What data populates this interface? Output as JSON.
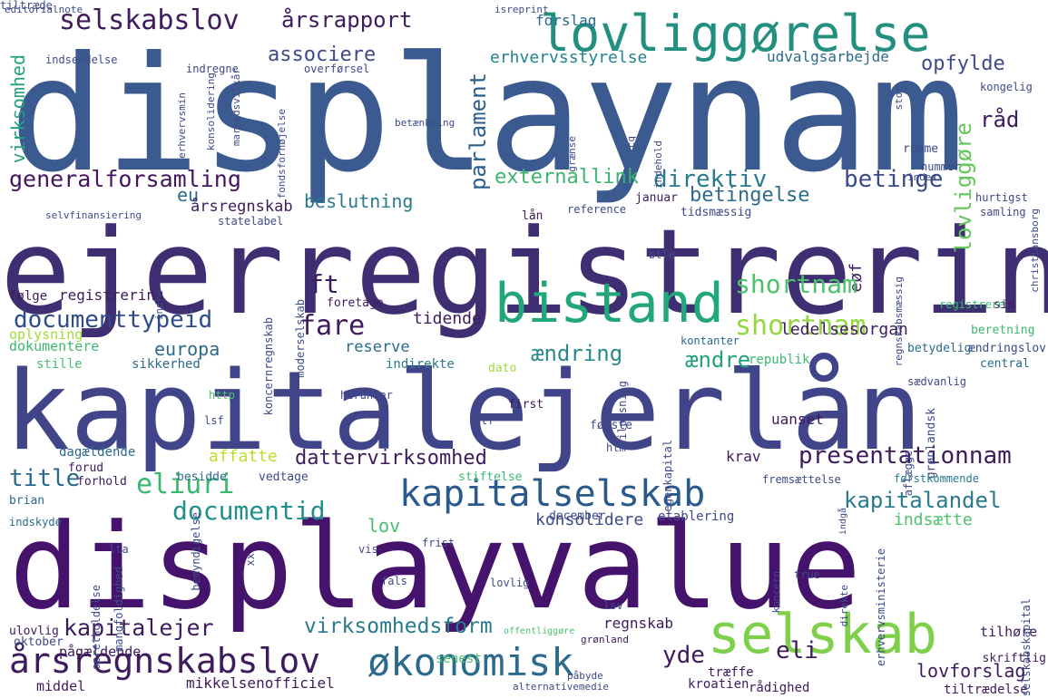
{
  "cloud": {
    "words": [
      {
        "text": "displaynam",
        "color": "#3b5a8f"
      },
      {
        "text": "ejerregistrering",
        "color": "#3f2f72"
      },
      {
        "text": "kapitalejerlån",
        "color": "#404589"
      },
      {
        "text": "displayvalue",
        "color": "#45136b"
      },
      {
        "text": "lovliggørelse",
        "color": "#23907f"
      },
      {
        "text": "bistand",
        "color": "#22a77a"
      },
      {
        "text": "selskab",
        "color": "#7ecf4a"
      },
      {
        "text": "selskabslov",
        "color": "#3e1b5c"
      },
      {
        "text": "årsrapport",
        "color": "#3e1b5c"
      },
      {
        "text": "associere",
        "color": "#3e4a89"
      },
      {
        "text": "erhvervsstyrelse",
        "color": "#21838e"
      },
      {
        "text": "udvalgsarbejde",
        "color": "#2a6a8d"
      },
      {
        "text": "opfylde",
        "color": "#3e4a89"
      },
      {
        "text": "virksomhed",
        "color": "#24a07e"
      },
      {
        "text": "parlament",
        "color": "#2c5e8e"
      },
      {
        "text": "forslag",
        "color": "#2a6a8d"
      },
      {
        "text": "generalforsamling",
        "color": "#46155f"
      },
      {
        "text": "externallink",
        "color": "#3cb46f"
      },
      {
        "text": "direktiv",
        "color": "#287a8e"
      },
      {
        "text": "betinge",
        "color": "#3a4b89"
      },
      {
        "text": "råd",
        "color": "#3e1b5c"
      },
      {
        "text": "eu",
        "color": "#2a6a8d"
      },
      {
        "text": "betingelse",
        "color": "#2f6b8e"
      },
      {
        "text": "lovliggøre",
        "color": "#63c759"
      },
      {
        "text": "årsregnskab",
        "color": "#3e1b5c"
      },
      {
        "text": "beslutning",
        "color": "#2a7a8e"
      },
      {
        "text": "documenttypeid",
        "color": "#2f4c8a"
      },
      {
        "text": "fare",
        "color": "#3e1b5c"
      },
      {
        "text": "shortnam",
        "color": "#93d741"
      },
      {
        "text": "ft",
        "color": "#3e1b5c"
      },
      {
        "text": "europa",
        "color": "#2d6a8d"
      },
      {
        "text": "ledelsesorgan",
        "color": "#3e1b5c"
      },
      {
        "text": "ændring",
        "color": "#2a8a8b"
      },
      {
        "text": "ændre",
        "color": "#24a27d"
      },
      {
        "text": "registrering",
        "color": "#3e1b5c"
      },
      {
        "text": "tidende",
        "color": "#3e1b5c"
      },
      {
        "text": "reserve",
        "color": "#2a6a8d"
      },
      {
        "text": "indirekte",
        "color": "#2a7a8e"
      },
      {
        "text": "eøf",
        "color": "#3e1b5c"
      },
      {
        "text": "presentationnam",
        "color": "#3e1b5c"
      },
      {
        "text": "dattervirksomhed",
        "color": "#3e1b5c"
      },
      {
        "text": "affatte",
        "color": "#b8de29"
      },
      {
        "text": "title",
        "color": "#2a6a8d"
      },
      {
        "text": "eliuri",
        "color": "#3ab96e"
      },
      {
        "text": "kapitalselskab",
        "color": "#2a5a8d"
      },
      {
        "text": "documentid",
        "color": "#21908c"
      },
      {
        "text": "kapitalandel",
        "color": "#2a7a8e"
      },
      {
        "text": "lov",
        "color": "#46c06f"
      },
      {
        "text": "konsolidere",
        "color": "#3e4a89"
      },
      {
        "text": "indsætte",
        "color": "#4cc26c"
      },
      {
        "text": "kapitalejer",
        "color": "#3e1b5c"
      },
      {
        "text": "virksomhedsform",
        "color": "#2a7a8e"
      },
      {
        "text": "årsregnskabslov",
        "color": "#3e1b5c"
      },
      {
        "text": "økonomisk",
        "color": "#2a6a8d"
      },
      {
        "text": "yde",
        "color": "#3e1b5c"
      },
      {
        "text": "eli",
        "color": "#3e1b5c"
      },
      {
        "text": "lovforslag",
        "color": "#3e1b5c"
      },
      {
        "text": "mikkelsenofficiel",
        "color": "#3e1b5c"
      },
      {
        "text": "regnskab",
        "color": "#3e1b5c"
      },
      {
        "text": "shortnam",
        "color": "#4cc26c"
      },
      {
        "text": "oplysning",
        "color": "#a2da37"
      },
      {
        "text": "dokumentere",
        "color": "#3ab96e"
      },
      {
        "text": "stille",
        "color": "#46c06f"
      },
      {
        "text": "sikkerhed",
        "color": "#2a6a8d"
      },
      {
        "text": "følge",
        "color": "#3e1b5c"
      },
      {
        "text": "krav",
        "color": "#3e1b5c"
      },
      {
        "text": "uanset",
        "color": "#3e1b5c"
      },
      {
        "text": "kontanter",
        "color": "#2a6a8d"
      },
      {
        "text": "republik",
        "color": "#3ab96e"
      },
      {
        "text": "central",
        "color": "#2a6a8d"
      },
      {
        "text": "grønlandsk",
        "color": "#3e4a89"
      },
      {
        "text": "tilhøre",
        "color": "#3e1b5c"
      },
      {
        "text": "skriftlig",
        "color": "#3e1b5c"
      },
      {
        "text": "tiltrædelse",
        "color": "#3e1b5c"
      },
      {
        "text": "rådighed",
        "color": "#3e1b5c"
      },
      {
        "text": "kroatien",
        "color": "#3e1b5c"
      },
      {
        "text": "træffe",
        "color": "#3e1b5c"
      },
      {
        "text": "senest",
        "color": "#4cc26c"
      },
      {
        "text": "oktober",
        "color": "#3e4a89"
      },
      {
        "text": "pågældende",
        "color": "#3e1b5c"
      },
      {
        "text": "middel",
        "color": "#3e1b5c"
      },
      {
        "text": "ulovlig",
        "color": "#3e1b5c"
      },
      {
        "text": "december",
        "color": "#3e4a89"
      },
      {
        "text": "etablering",
        "color": "#3e4a89"
      },
      {
        "text": "dagældende",
        "color": "#2a6a8d"
      },
      {
        "text": "forud",
        "color": "#3e1b5c"
      },
      {
        "text": "forhold",
        "color": "#3e1b5c"
      },
      {
        "text": "brian",
        "color": "#2a6a8d"
      },
      {
        "text": "indskyde",
        "color": "#2a6a8d"
      },
      {
        "text": "besidde",
        "color": "#2a6a8d"
      },
      {
        "text": "vedtage",
        "color": "#3e4a89"
      },
      {
        "text": "stiftelse",
        "color": "#3ab96e"
      },
      {
        "text": "fremsættelse",
        "color": "#3e4a89"
      },
      {
        "text": "førstkommende",
        "color": "#2a7a8e"
      },
      {
        "text": "beretning",
        "color": "#3ab96e"
      },
      {
        "text": "ændringslov",
        "color": "#3e4a89"
      },
      {
        "text": "betydelig",
        "color": "#2a6a8d"
      },
      {
        "text": "registrere",
        "color": "#3ab96e"
      },
      {
        "text": "sid",
        "color": "#3e1b5c"
      },
      {
        "text": "rumme",
        "color": "#3e4a89"
      },
      {
        "text": "nummer",
        "color": "#3e4a89"
      },
      {
        "text": "hurtigst",
        "color": "#3e4a89"
      },
      {
        "text": "samling",
        "color": "#3e4a89"
      },
      {
        "text": "kongelig",
        "color": "#3e4a89"
      },
      {
        "text": "index",
        "color": "#3e4a89"
      },
      {
        "text": "januar",
        "color": "#3e1b5c"
      },
      {
        "text": "reference",
        "color": "#3e4a89"
      },
      {
        "text": "tidsmæssig",
        "color": "#3e4a89"
      },
      {
        "text": "lån",
        "color": "#3e1b5c"
      },
      {
        "text": "statelabel",
        "color": "#3e4a89"
      },
      {
        "text": "btle",
        "color": "#3e4a89"
      },
      {
        "text": "foretage",
        "color": "#3e1b5c"
      },
      {
        "text": "herunder",
        "color": "#3e4a89"
      },
      {
        "text": "first",
        "color": "#3e1b5c"
      },
      {
        "text": "første",
        "color": "#3e4a89"
      },
      {
        "text": "http",
        "color": "#4cc26c"
      },
      {
        "text": "lsf",
        "color": "#3e4a89"
      },
      {
        "text": "lf",
        "color": "#3e4a89"
      },
      {
        "text": "dato",
        "color": "#a2da37"
      },
      {
        "text": "htm",
        "color": "#3e4a89"
      },
      {
        "text": "egenkapital",
        "color": "#3e4a89"
      },
      {
        "text": "sædvanlig",
        "color": "#3e4a89"
      },
      {
        "text": "aflæggelse",
        "color": "#3e4a89"
      },
      {
        "text": "tilpasning",
        "color": "#3e4a89"
      },
      {
        "text": "lta",
        "color": "#3e4a89"
      },
      {
        "text": "vis",
        "color": "#3e4a89"
      },
      {
        "text": "frist",
        "color": "#3e4a89"
      },
      {
        "text": "fals",
        "color": "#3e4a89"
      },
      {
        "text": "true",
        "color": "#3e4a89"
      },
      {
        "text": "lsv",
        "color": "#3e4a89"
      },
      {
        "text": "lovlig",
        "color": "#3e4a89"
      },
      {
        "text": "indgå",
        "color": "#3e4a89"
      },
      {
        "text": "offentliggøre",
        "color": "#4cc26c"
      },
      {
        "text": "alternativemedie",
        "color": "#3e4a89"
      },
      {
        "text": "påbyde",
        "color": "#3e4a89"
      },
      {
        "text": "grønland",
        "color": "#3e1b5c"
      },
      {
        "text": "editorialnote",
        "color": "#3e4a89"
      },
      {
        "text": "isreprint",
        "color": "#3e4a89"
      },
      {
        "text": "indsendelse",
        "color": "#3e4a89"
      },
      {
        "text": "indregne",
        "color": "#3e4a89"
      },
      {
        "text": "overførsel",
        "color": "#3e4a89"
      },
      {
        "text": "erhvervsmin",
        "color": "#3e4a89"
      },
      {
        "text": "konsolidering",
        "color": "#3e4a89"
      },
      {
        "text": "markedsvilkår",
        "color": "#3e4a89"
      },
      {
        "text": "fondsforhøjelse",
        "color": "#3e4a89"
      },
      {
        "text": "betænkning",
        "color": "#3e4a89"
      },
      {
        "text": "cq",
        "color": "#3e4a89"
      },
      {
        "text": "indehold",
        "color": "#3e4a89"
      },
      {
        "text": "stor",
        "color": "#3e4a89"
      },
      {
        "text": "christiansborg",
        "color": "#3e4a89"
      },
      {
        "text": "selvfinansiering",
        "color": "#3e4a89"
      },
      {
        "text": "indre",
        "color": "#3e4a89"
      },
      {
        "text": "moderselskab",
        "color": "#3e4a89"
      },
      {
        "text": "koncernregnskab",
        "color": "#3e4a89"
      },
      {
        "text": "bemyndigelse",
        "color": "#3e4a89"
      },
      {
        "text": "xx",
        "color": "#3e4a89"
      },
      {
        "text": "mangfoldighed",
        "color": "#3e4a89"
      },
      {
        "text": "opretholdelse",
        "color": "#3e4a89"
      },
      {
        "text": "selskabskapital",
        "color": "#3e4a89"
      },
      {
        "text": "erhvervsministerie",
        "color": "#3e4a89"
      },
      {
        "text": "direkte",
        "color": "#3e4a89"
      },
      {
        "text": "koncern",
        "color": "#3e4a89"
      },
      {
        "text": "grænse",
        "color": "#3e4a89"
      },
      {
        "text": "regnskabsmæssig",
        "color": "#3e4a89"
      },
      {
        "text": "tiltræde",
        "color": "#3e4a89"
      }
    ]
  }
}
